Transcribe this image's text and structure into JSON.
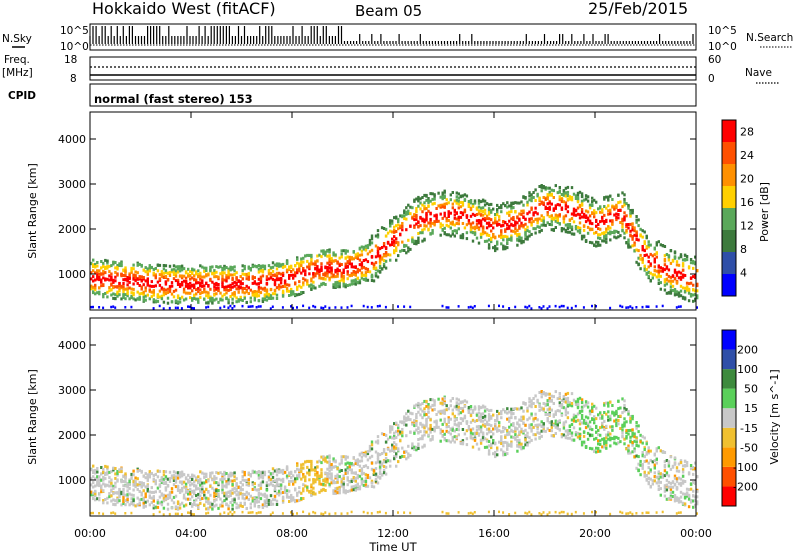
{
  "header": {
    "station": "Hokkaido West (fitACF)",
    "beam": "Beam 05",
    "date": "25/Feb/2015"
  },
  "top_panels": {
    "nsky_label": "N.Sky",
    "nsearch_label": "N.Search",
    "noise_ticks": [
      "10^5",
      "10^0"
    ],
    "freq_label": "Freq.",
    "freq_unit": "[MHz]",
    "freq_ticks": [
      "18",
      "8"
    ],
    "nave_label": "Nave",
    "nave_ticks": [
      "60",
      "0"
    ],
    "cpid_label": "CPID",
    "cpid_value": "normal (fast stereo) 153"
  },
  "colors": {
    "power": [
      "#0000ff",
      "#2f4fa8",
      "#3d7a3d",
      "#5aa85a",
      "#ffd000",
      "#ff9000",
      "#ff5000",
      "#ff0000"
    ],
    "velocity": [
      "#ff0000",
      "#ff5000",
      "#ff9a00",
      "#f0c030",
      "#c8c8c8",
      "#5ad05a",
      "#3d8a3d",
      "#2f4fa8",
      "#0000ff"
    ]
  },
  "chart_data": [
    {
      "type": "heatmap",
      "name": "power",
      "ylabel": "Slant Range [km]",
      "xlabel": "Time UT",
      "x_ticks": [
        "00:00",
        "04:00",
        "08:00",
        "12:00",
        "16:00",
        "20:00",
        "00:00"
      ],
      "xlim_hours": [
        0,
        24
      ],
      "y_ticks": [
        1000,
        2000,
        3000,
        4000
      ],
      "ylim": [
        200,
        4600
      ],
      "colorbar_label": "Power [dB]",
      "colorbar_ticks": [
        4,
        8,
        12,
        16,
        20,
        24,
        28
      ],
      "colorbar_range": [
        0,
        30
      ],
      "echo_band_hours": [
        0,
        1,
        2,
        3,
        4,
        5,
        6,
        7,
        8,
        9,
        10,
        11,
        12,
        13,
        14,
        15,
        16,
        17,
        18,
        19,
        20,
        21,
        22,
        23,
        24
      ],
      "echo_band_center_km": [
        950,
        900,
        850,
        800,
        800,
        800,
        800,
        850,
        950,
        1150,
        1150,
        1300,
        1800,
        2250,
        2400,
        2300,
        2050,
        2200,
        2550,
        2450,
        2150,
        2400,
        1400,
        1050,
        900
      ]
    },
    {
      "type": "heatmap",
      "name": "velocity",
      "ylabel": "Slant Range [km]",
      "xlabel": "Time UT",
      "x_ticks": [
        "00:00",
        "04:00",
        "08:00",
        "12:00",
        "16:00",
        "20:00",
        "00:00"
      ],
      "xlim_hours": [
        0,
        24
      ],
      "y_ticks": [
        1000,
        2000,
        3000,
        4000
      ],
      "ylim": [
        200,
        4600
      ],
      "colorbar_label": "Velocity [m s^-1]",
      "colorbar_ticks": [
        200,
        100,
        50,
        15,
        -15,
        -50,
        -100,
        -200
      ]
    }
  ]
}
